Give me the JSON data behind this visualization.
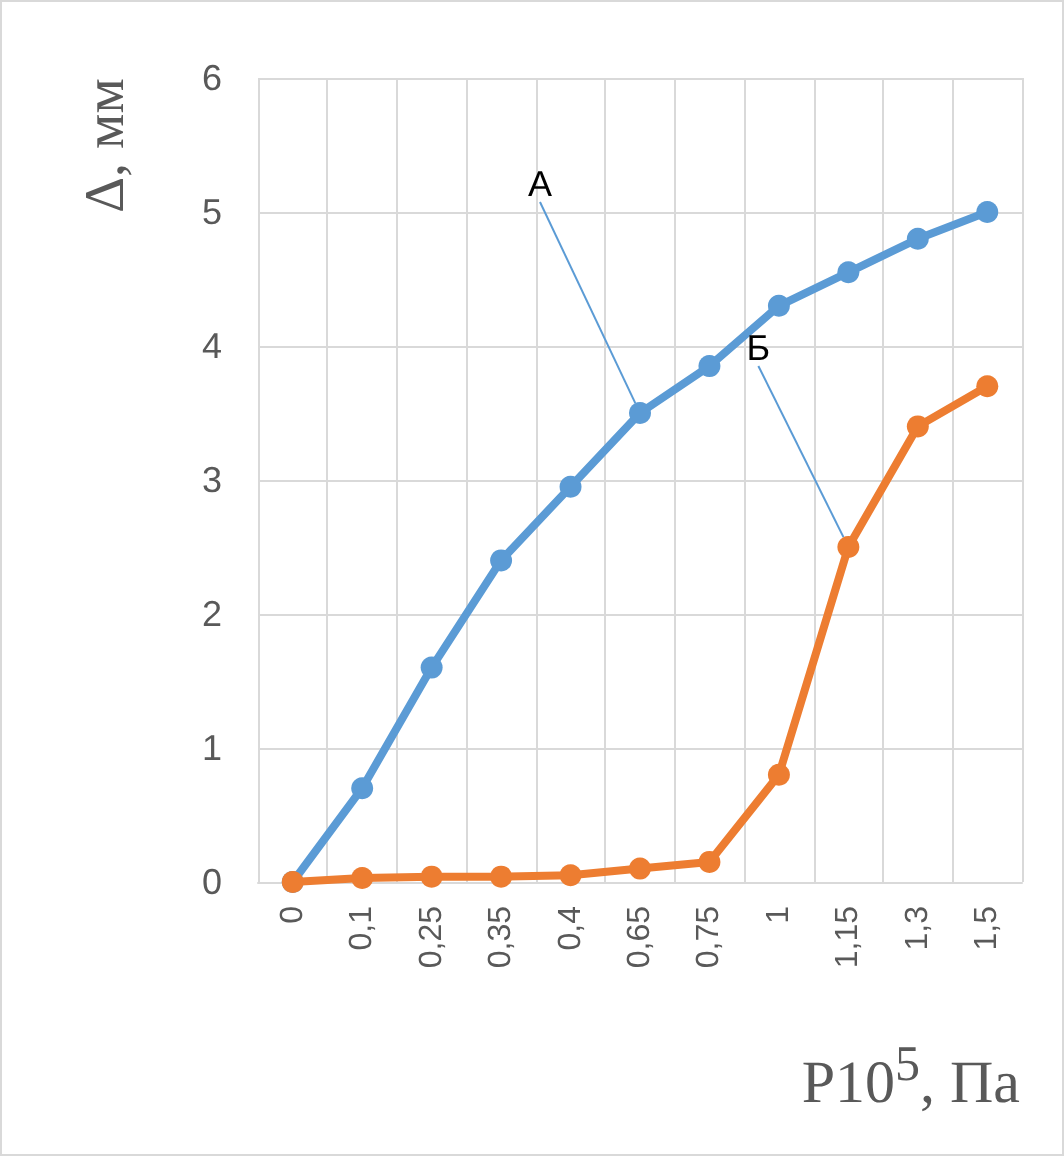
{
  "chart_data": {
    "type": "line",
    "xlabel": "P10$^{5}$, Па",
    "ylabel": "Δ, мм",
    "categories": [
      "0",
      "0,1",
      "0,25",
      "0,35",
      "0,4",
      "0,65",
      "0,75",
      "1",
      "1,15",
      "1,3",
      "1,5"
    ],
    "series": [
      {
        "name": "А",
        "color": "#5b9bd5",
        "values": [
          0,
          0.7,
          1.6,
          2.4,
          2.95,
          3.5,
          3.85,
          4.3,
          4.55,
          4.8,
          5.0
        ]
      },
      {
        "name": "Б",
        "color": "#ed7d31",
        "values": [
          0,
          0.03,
          0.04,
          0.04,
          0.05,
          0.1,
          0.15,
          0.8,
          2.5,
          3.4,
          3.7
        ]
      }
    ],
    "ylim": [
      0,
      6
    ],
    "yticks": [
      0,
      1,
      2,
      3,
      4,
      5,
      6
    ],
    "grid": true,
    "marker": "circle",
    "line_style": "solid",
    "legend": false
  }
}
